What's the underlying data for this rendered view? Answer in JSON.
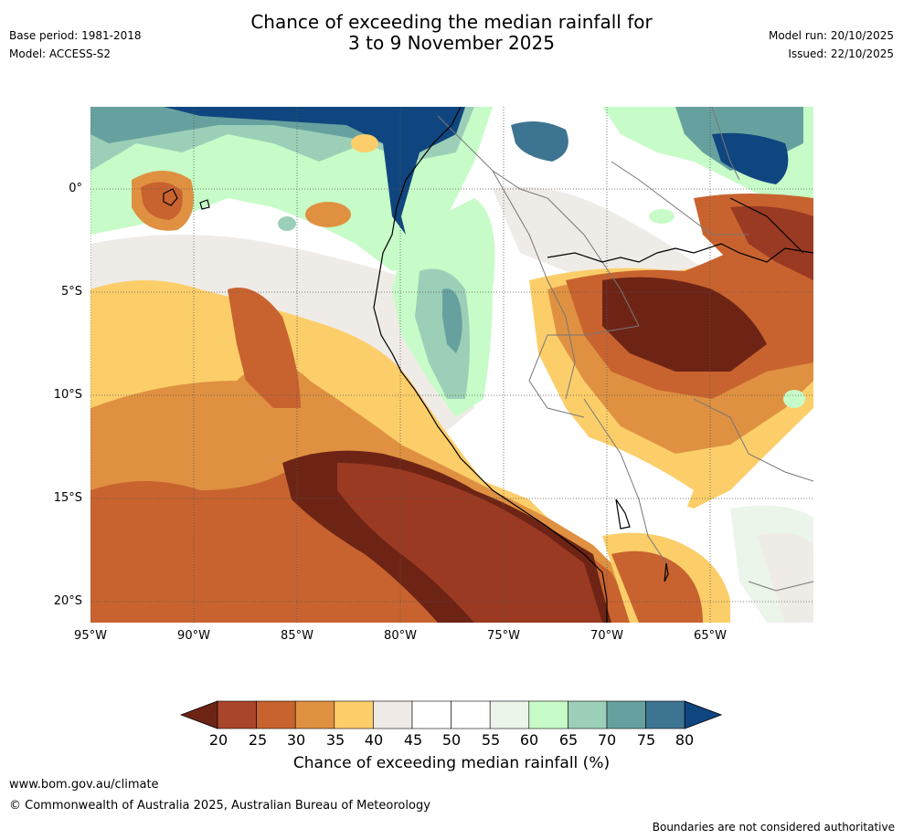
{
  "title_line1": "Chance of exceeding the median rainfall for",
  "title_line2": "3 to 9 November 2025",
  "base_period": "Base period: 1981-2018",
  "model": "Model: ACCESS-S2",
  "model_run": "Model run: 20/10/2025",
  "issued": "Issued: 22/10/2025",
  "lat_labels": [
    "0°",
    "5°S",
    "10°S",
    "15°S",
    "20°S"
  ],
  "lon_labels": [
    "95°W",
    "90°W",
    "85°W",
    "80°W",
    "75°W",
    "70°W",
    "65°W"
  ],
  "colorbar": {
    "ticks": [
      "20",
      "25",
      "30",
      "35",
      "40",
      "45",
      "50",
      "55",
      "60",
      "65",
      "70",
      "75",
      "80"
    ],
    "colors": [
      "#6e2415",
      "#a9452a",
      "#c8632f",
      "#df9141",
      "#fcce6a",
      "#efebe6",
      "#ffffff",
      "#ffffff",
      "#ebf5ea",
      "#c7fcc8",
      "#9ccfb7",
      "#67a19f",
      "#3d7492",
      "#10467f"
    ],
    "label": "Chance of exceeding median rainfall (%)"
  },
  "site": "www.bom.gov.au/climate",
  "copyright": "© Commonwealth of Australia 2025, Australian Bureau of Meteorology",
  "disclaimer": "Boundaries are not considered authoritative",
  "map_colors": {
    "c20": "#6e2415",
    "c25": "#9a3a22",
    "c30": "#c8632f",
    "c35": "#df9141",
    "c40": "#fcce6a",
    "c45": "#efebe6",
    "c60": "#ebf5ea",
    "c65": "#c7fcc8",
    "c70": "#9ccfb7",
    "c75": "#67a19f",
    "c80": "#3d7492",
    "c85": "#10467f"
  }
}
